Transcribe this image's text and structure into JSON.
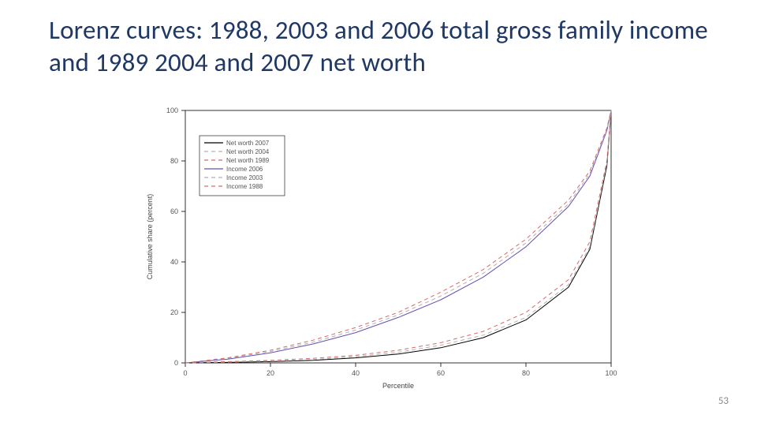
{
  "title": "Lorenz curves: 1988, 2003 and 2006 total gross family income and 1989 2004 and 2007 net worth",
  "page_number": "53",
  "chart": {
    "type": "line",
    "background_color": "#ffffff",
    "plot_border_color": "#000000",
    "xlabel": "Percentile",
    "ylabel": "Cumulative share (percent)",
    "label_fontsize": 9,
    "tick_fontsize": 9,
    "xlim": [
      0,
      100
    ],
    "ylim": [
      0,
      100
    ],
    "xtick_step": 20,
    "ytick_step": 20,
    "xticks": [
      0,
      20,
      40,
      60,
      80,
      100
    ],
    "yticks": [
      0,
      20,
      40,
      60,
      80,
      100
    ],
    "legend": {
      "position": "upper-left-inset",
      "box_border": "#000000",
      "items": [
        {
          "label": "Net worth 2007",
          "color": "#000000",
          "dash": "solid"
        },
        {
          "label": "Net worth 2004",
          "color": "#b0b0b0",
          "dash": "dash"
        },
        {
          "label": "Net worth 1989",
          "color": "#d46a6a",
          "dash": "dash"
        },
        {
          "label": "Income 2006",
          "color": "#6a4fb3",
          "dash": "solid"
        },
        {
          "label": "Income 2003",
          "color": "#b0b0b0",
          "dash": "dash"
        },
        {
          "label": "Income 1988",
          "color": "#d46a6a",
          "dash": "dash"
        }
      ]
    },
    "series": [
      {
        "name": "Net worth 2007",
        "color": "#000000",
        "dash": "solid",
        "line_width": 1.0,
        "x": [
          0,
          10,
          20,
          30,
          40,
          50,
          60,
          70,
          80,
          90,
          95,
          99,
          100
        ],
        "y": [
          0,
          0.2,
          0.5,
          1.0,
          2.0,
          3.5,
          6.0,
          10,
          17,
          30,
          45,
          78,
          100
        ]
      },
      {
        "name": "Net worth 2004",
        "color": "#b0b0b0",
        "dash": "dash",
        "line_width": 1.0,
        "x": [
          0,
          10,
          20,
          30,
          40,
          50,
          60,
          70,
          80,
          90,
          95,
          99,
          100
        ],
        "y": [
          0,
          0.3,
          0.7,
          1.3,
          2.5,
          4.2,
          7.0,
          11,
          18,
          31,
          46,
          79,
          100
        ]
      },
      {
        "name": "Net worth 1989",
        "color": "#d46a6a",
        "dash": "dash",
        "line_width": 1.0,
        "x": [
          0,
          10,
          20,
          30,
          40,
          50,
          60,
          70,
          80,
          90,
          95,
          99,
          100
        ],
        "y": [
          0,
          0.5,
          1.0,
          1.8,
          3.0,
          5.0,
          8.0,
          12.5,
          20,
          33,
          48,
          80,
          100
        ]
      },
      {
        "name": "Income 2006",
        "color": "#6a4fb3",
        "dash": "solid",
        "line_width": 1.0,
        "x": [
          0,
          10,
          20,
          30,
          40,
          50,
          60,
          70,
          80,
          90,
          95,
          99,
          100
        ],
        "y": [
          0,
          1.5,
          4,
          7.5,
          12,
          18,
          25,
          34,
          46,
          62,
          74,
          92,
          100
        ]
      },
      {
        "name": "Income 2003",
        "color": "#b0b0b0",
        "dash": "dash",
        "line_width": 1.0,
        "x": [
          0,
          10,
          20,
          30,
          40,
          50,
          60,
          70,
          80,
          90,
          95,
          99,
          100
        ],
        "y": [
          0,
          1.8,
          4.5,
          8.2,
          13,
          19,
          26.5,
          35.5,
          47.5,
          63,
          75,
          92.5,
          100
        ]
      },
      {
        "name": "Income 1988",
        "color": "#d46a6a",
        "dash": "dash",
        "line_width": 1.0,
        "x": [
          0,
          10,
          20,
          30,
          40,
          50,
          60,
          70,
          80,
          90,
          95,
          99,
          100
        ],
        "y": [
          0,
          2,
          5,
          9,
          14,
          20,
          28,
          37,
          49,
          64.5,
          76,
          93,
          100
        ]
      }
    ]
  }
}
